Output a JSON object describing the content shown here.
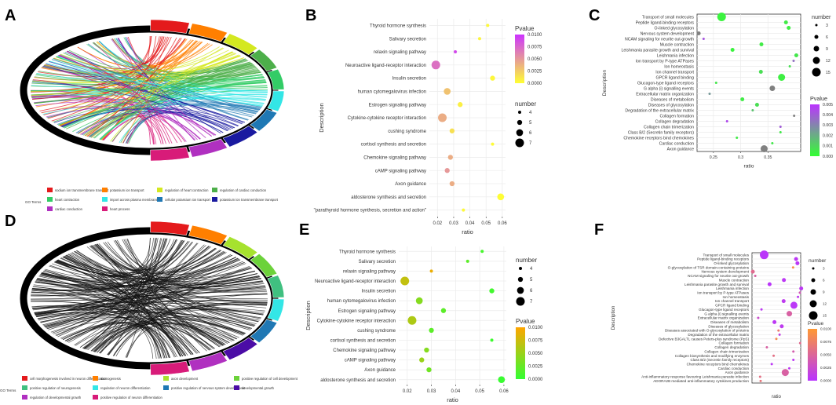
{
  "panel_letters": [
    "A",
    "B",
    "C",
    "D",
    "E",
    "F"
  ],
  "colors": {
    "chord_a": [
      "#e41a1c",
      "#ff7f00",
      "#d4e820",
      "#4daf4a",
      "#33cc66",
      "#33e6e6",
      "#1f78b4",
      "#1a1aa0",
      "#b030c0",
      "#d81b79"
    ],
    "chord_d": [
      "#e41a1c",
      "#ff7f00",
      "#a6e22e",
      "#6cd23a",
      "#40c080",
      "#33e6e6",
      "#1f78b4",
      "#4b0ca6",
      "#b030c0",
      "#d81b79"
    ],
    "gridline": "#ebebeb",
    "panel_border": "#333333"
  },
  "panel_a": {
    "legend_title": "GO Terms",
    "legend": [
      {
        "label": "sodium ion transmembrane transport",
        "color": "#e41a1c"
      },
      {
        "label": "potassium ion transport",
        "color": "#ff7f00"
      },
      {
        "label": "regulation of heart contraction",
        "color": "#d4e820"
      },
      {
        "label": "regulation of cardiac conduction",
        "color": "#4daf4a"
      },
      {
        "label": "heart contraction",
        "color": "#33cc66"
      },
      {
        "label": "import across plasma membrane",
        "color": "#33e6e6"
      },
      {
        "label": "cellular potassium ion transport",
        "color": "#1f78b4"
      },
      {
        "label": "potassium ion transmembrane transport",
        "color": "#1a1aa0"
      },
      {
        "label": "cardiac conduction",
        "color": "#b030c0"
      },
      {
        "label": "heart process",
        "color": "#d81b79"
      }
    ]
  },
  "panel_d": {
    "legend_title": "GO Terms",
    "legend": [
      {
        "label": "cell morphogenesis involved in neuron differentiation",
        "color": "#e41a1c"
      },
      {
        "label": "axonogenesis",
        "color": "#ff7f00"
      },
      {
        "label": "axon development",
        "color": "#a6e22e"
      },
      {
        "label": "positive regulation of cell development",
        "color": "#6cd23a"
      },
      {
        "label": "positive regulation of neurogenesis",
        "color": "#40c080"
      },
      {
        "label": "regulation of neuron differentiation",
        "color": "#33e6e6"
      },
      {
        "label": "positive regulation of nervous system development",
        "color": "#1f78b4"
      },
      {
        "label": "developmental growth",
        "color": "#4b0ca6"
      },
      {
        "label": "regulation of developmental growth",
        "color": "#b030c0"
      },
      {
        "label": "positive regulation of neuron differentiation",
        "color": "#d81b79"
      }
    ]
  },
  "chart_data": [
    {
      "panel": "B",
      "type": "scatter",
      "title": "",
      "xlabel": "ratio",
      "ylabel": "Description",
      "xlim": [
        0.015,
        0.062
      ],
      "xticks": [
        0.02,
        0.03,
        0.04,
        0.05,
        0.06
      ],
      "xtick_labels": [
        "0.02",
        "0.03",
        "0.04",
        "0.05",
        "0.06"
      ],
      "categories": [
        "Thyroid hormone synthesis",
        "Salivary secretion",
        "relaxin signaling pathway",
        "Neuroactive ligand-receptor interaction",
        "Insulin secretion",
        "human cytomegalovirus infection",
        "Estrogen signaling pathway",
        "Cytokine-cytokine receptor interaction",
        "cushing syndrome",
        "cortisol synthesis and secretion",
        "Chemokine signaling pathway",
        "cAMP signaling pathway",
        "Axon guidance",
        "aldosterone synthesis and secretion",
        "\"parathyroid hormone synthesis, secretion and action\""
      ],
      "x": [
        0.051,
        0.046,
        0.031,
        0.019,
        0.054,
        0.026,
        0.034,
        0.023,
        0.029,
        0.054,
        0.028,
        0.026,
        0.029,
        0.059,
        0.036
      ],
      "count": [
        4,
        4,
        4,
        7,
        5,
        6,
        5,
        7,
        5,
        4,
        5,
        5,
        5,
        6,
        4
      ],
      "pvalue": [
        0.0003,
        0.0005,
        0.009,
        0.007,
        0.0004,
        0.003,
        0.0008,
        0.004,
        0.0015,
        0.0002,
        0.004,
        0.005,
        0.004,
        0.0001,
        0.0003
      ],
      "color_scale": {
        "title": "Pvalue",
        "min": 0.0,
        "max": 0.01,
        "low": "#ffff33",
        "high": "#cc33ff",
        "ticks": [
          "0.0100",
          "0.0075",
          "0.0050",
          "0.0025",
          "0.0000"
        ]
      },
      "size_legend": {
        "title": "number",
        "values": [
          4,
          5,
          6,
          7
        ]
      }
    },
    {
      "panel": "C",
      "type": "scatter",
      "title": "",
      "xlabel": "ratio",
      "ylabel": "Description",
      "xlim": [
        0.22,
        0.41
      ],
      "xticks": [
        0.25,
        0.3,
        0.35
      ],
      "xtick_labels": [
        "0.25",
        "0.3",
        "0.35"
      ],
      "categories": [
        "Transport of small molecules",
        "Peptide ligand-binding receptors",
        "O-linked glycosylation",
        "Nervous system development",
        "NCAM signaling for neurite out-growth",
        "Muscle contraction",
        "Leishmania parasite growth and survival",
        "Leishmania infection",
        "Ion transport by P-type ATPases",
        "Ion homeostasis",
        "Ion channel transport",
        "GPCR ligand binding",
        "Glucagon-type ligand receptors",
        "G alpha (i) signalling events",
        "Extracellular matrix organization",
        "Diseases of metabolism",
        "Diseases of glycosylation",
        "Degradation of the extracellular matrix",
        "Collagen formation",
        "Collagen degradation",
        "Collagen chain trimerization",
        "Class B/2 (Secretin family receptors)",
        "Chemokine receptors bind chemokines",
        "Cardiac conduction",
        "Axon guidance"
      ],
      "x": [
        0.265,
        0.383,
        0.388,
        0.223,
        0.232,
        0.338,
        0.285,
        0.402,
        0.397,
        0.39,
        0.337,
        0.375,
        0.255,
        0.358,
        0.243,
        0.303,
        0.33,
        0.322,
        0.398,
        0.275,
        0.373,
        0.373,
        0.293,
        0.358,
        0.343
      ],
      "count": [
        15,
        6,
        6,
        6,
        3,
        6,
        6,
        6,
        3,
        3,
        6,
        12,
        3,
        9,
        3,
        6,
        6,
        3,
        3,
        3,
        3,
        3,
        3,
        3,
        12
      ],
      "pvalue": [
        0.0003,
        0.0005,
        0.0004,
        0.0055,
        0.0042,
        0.0005,
        0.0003,
        0.0006,
        0.0035,
        0.0008,
        0.0008,
        0.0004,
        0.0006,
        0.0055,
        0.0025,
        0.0005,
        0.0008,
        0.0015,
        0.0055,
        0.0045,
        0.004,
        0.0006,
        0.0005,
        0.0006,
        0.0055
      ],
      "grey_above": 0.005,
      "color_scale": {
        "title": "Pvalue",
        "min": 0.0,
        "max": 0.005,
        "low": "#33ff33",
        "high": "#bb33ff",
        "ticks": [
          "0.005",
          "0.004",
          "0.003",
          "0.002",
          "0.001",
          "0.000"
        ]
      },
      "size_legend": {
        "title": "number",
        "values": [
          3,
          6,
          9,
          12,
          15
        ]
      }
    },
    {
      "panel": "E",
      "type": "scatter",
      "title": "",
      "xlabel": "ratio",
      "ylabel": "Description",
      "xlim": [
        0.0165,
        0.061
      ],
      "xticks": [
        0.02,
        0.03,
        0.04,
        0.05,
        0.06
      ],
      "xtick_labels": [
        "0.02",
        "0.03",
        "0.04",
        "0.05",
        "0.06"
      ],
      "categories": [
        "Thyroid hormone synthesis",
        "Salivary secretion",
        "relaxin signaling pathway",
        "Neuroactive ligand-receptor interaction",
        "Insulin secretion",
        "human cytomegalovirus infection",
        "Estrogen signaling pathway",
        "Cytokine-cytokine receptor interaction",
        "cushing syndrome",
        "cortisol synthesis and secretion",
        "Chemokine signaling pathway",
        "cAMP signaling pathway",
        "Axon guidance",
        "aldosterone synthesis and secretion"
      ],
      "x": [
        0.051,
        0.045,
        0.03,
        0.019,
        0.055,
        0.025,
        0.035,
        0.022,
        0.03,
        0.055,
        0.028,
        0.026,
        0.029,
        0.059
      ],
      "count": [
        4,
        4,
        4,
        7,
        5,
        6,
        5,
        7,
        5,
        4,
        5,
        5,
        5,
        6
      ],
      "pvalue": [
        0.001,
        0.002,
        0.009,
        0.007,
        0.0008,
        0.004,
        0.002,
        0.006,
        0.002,
        0.0005,
        0.004,
        0.005,
        0.003,
        0.0003
      ],
      "color_scale": {
        "title": "Pvalue",
        "min": 0.0,
        "max": 0.01,
        "low": "#33ff33",
        "high": "#ffa500",
        "ticks": [
          "0.0100",
          "0.0075",
          "0.0050",
          "0.0025",
          "0.0000"
        ]
      },
      "size_legend": {
        "title": "number",
        "values": [
          4,
          5,
          6,
          7
        ]
      }
    },
    {
      "panel": "F",
      "type": "scatter",
      "title": "",
      "xlabel": "ratio",
      "ylabel": "Description",
      "xlim": [
        0.22,
        0.4
      ],
      "xticks": [],
      "xtick_labels": [],
      "categories": [
        "Transport of small molecules",
        "Peptide ligand-binding receptors",
        "O-linked glycosylation",
        "O-glycosylation of TSR domain-containing proteins",
        "Nervous system development",
        "NCAM signaling for neurite out-growth",
        "Muscle contraction",
        "Leishmania parasite growth and survival",
        "Leishmania infection",
        "Ion transport by P-type ATPases",
        "Ion homeostasis",
        "Ion channel transport",
        "GPCR ligand binding",
        "Glucagon-type ligand receptors",
        "G alpha (i) signalling events",
        "Extracellular matrix organization",
        "Diseases of metabolism",
        "Diseases of glycosylation",
        "Diseases associated with O-glycosylation of proteins",
        "Degradation of the extracellular matrix",
        "Defective B3GALTL causes Peters-plus syndrome (PpS)",
        "Collagen formation",
        "Collagen degradation",
        "Collagen chain trimerization",
        "Collagen biosynthesis and modifying enzymes",
        "Class B/2 (Secretin family receptors)",
        "Chemokine receptors bind chemokines",
        "Cardiac conduction",
        "Axon guidance",
        "Anti-inflammatory response favouring Leishmania parasite infection",
        "ADORA2B mediated anti-inflammatory cytokines production"
      ],
      "x": [
        0.265,
        0.383,
        0.388,
        0.372,
        0.223,
        0.232,
        0.338,
        0.285,
        0.402,
        0.397,
        0.39,
        0.337,
        0.375,
        0.255,
        0.358,
        0.243,
        0.303,
        0.33,
        0.318,
        0.322,
        0.31,
        0.398,
        0.275,
        0.373,
        0.3,
        0.373,
        0.293,
        0.358,
        0.343,
        0.25,
        0.252
      ],
      "count": [
        15,
        6,
        6,
        3,
        6,
        3,
        6,
        6,
        6,
        3,
        3,
        6,
        12,
        3,
        9,
        3,
        6,
        6,
        3,
        3,
        3,
        3,
        3,
        3,
        3,
        3,
        3,
        3,
        12,
        3,
        3
      ],
      "pvalue": [
        0.0003,
        0.0005,
        0.0004,
        0.009,
        0.0055,
        0.0045,
        0.0005,
        0.0003,
        0.0006,
        0.0035,
        0.0008,
        0.0008,
        0.0004,
        0.0006,
        0.0045,
        0.0025,
        0.0005,
        0.0008,
        0.007,
        0.0015,
        0.0085,
        0.0055,
        0.0045,
        0.004,
        0.006,
        0.0006,
        0.0005,
        0.0006,
        0.0045,
        0.006,
        0.0065
      ],
      "color_scale": {
        "title": "Pvalue",
        "min": 0.0,
        "max": 0.01,
        "low": "#b833ff",
        "high": "#ff9933",
        "ticks": [
          "0.0100",
          "0.0075",
          "0.0050",
          "0.0025",
          "0.0000"
        ]
      },
      "size_legend": {
        "title": "number",
        "values": [
          3,
          6,
          9,
          12,
          15
        ]
      }
    }
  ]
}
